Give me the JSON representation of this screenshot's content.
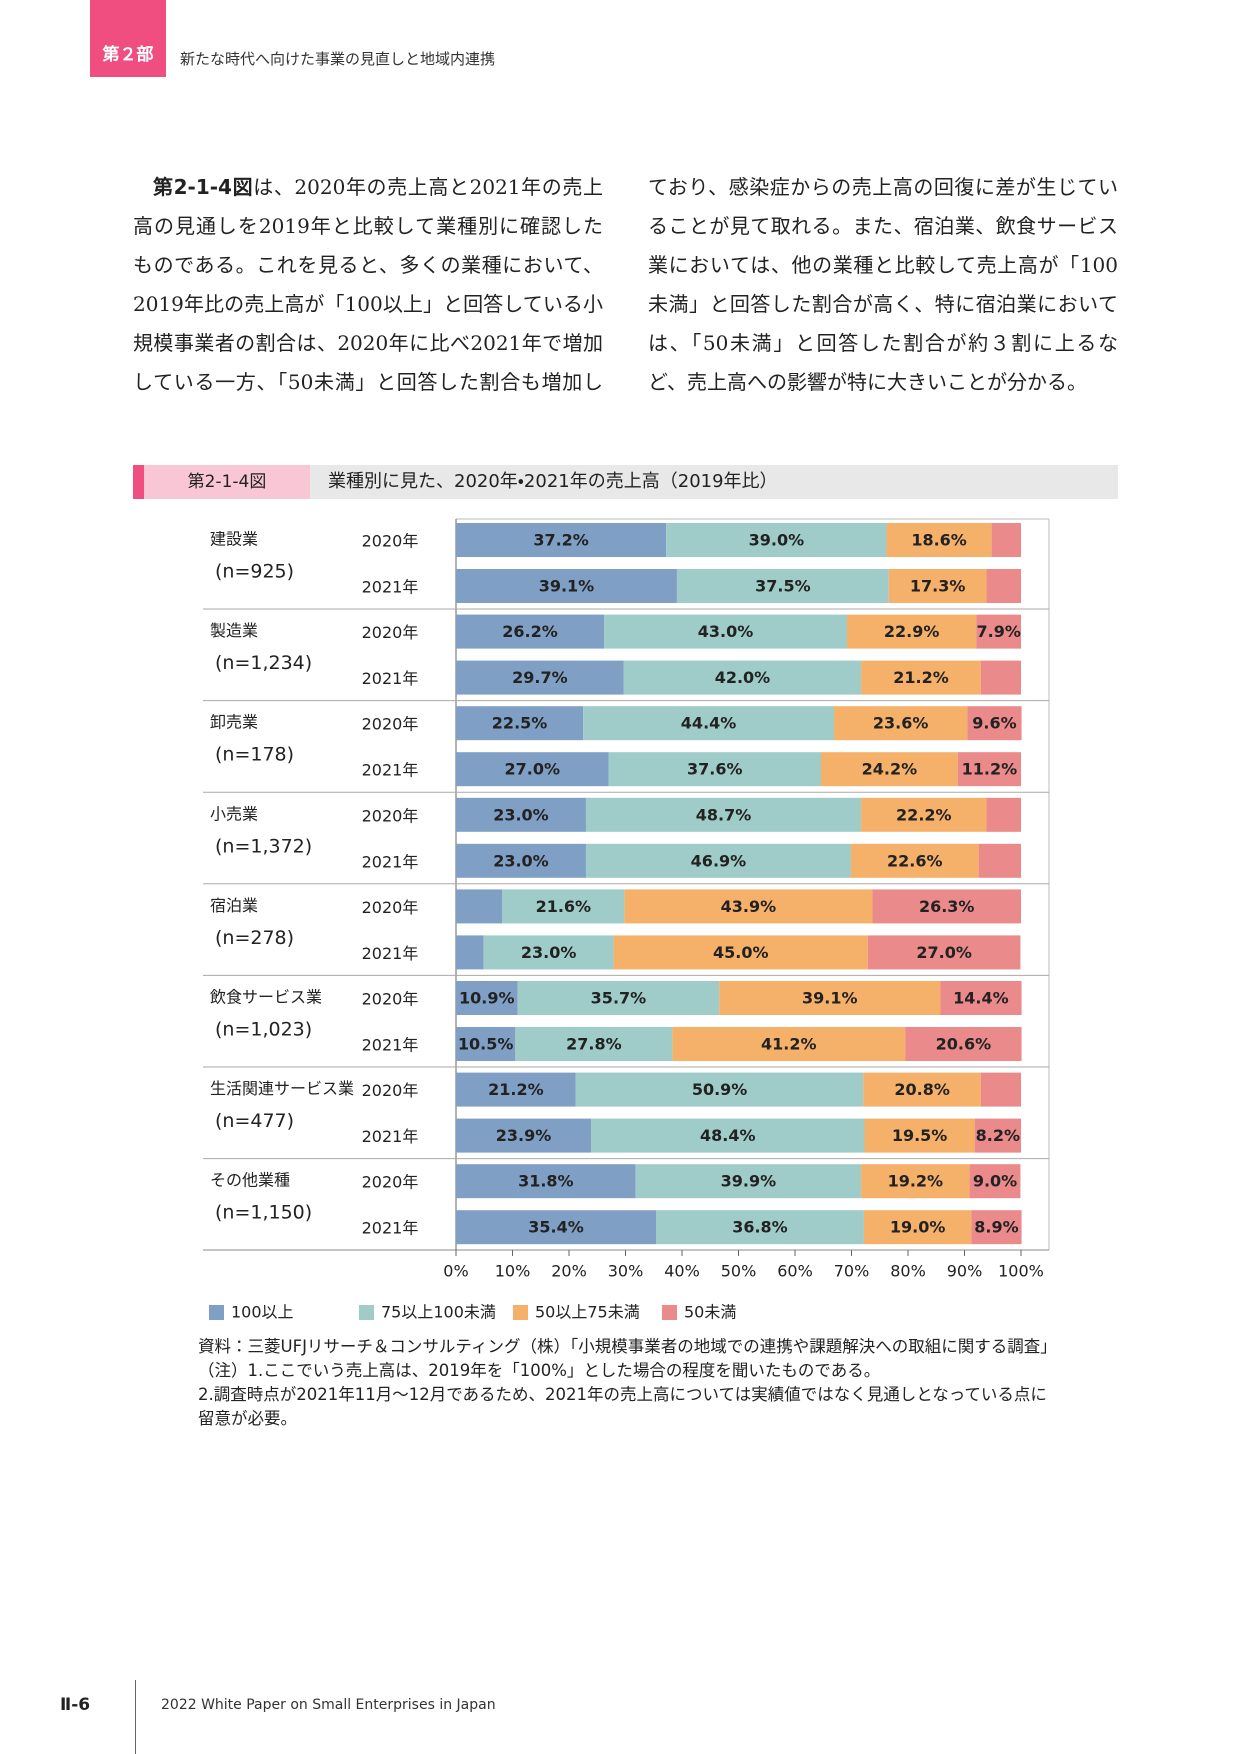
{
  "header": {
    "part": "第２部",
    "title": "新たな時代へ向けた事業の見直しと地域内連携"
  },
  "body": {
    "lead": "第2-1-4図",
    "text": "は、2020年の売上高と2021年の売上高の見通しを2019年と比較して業種別に確認したものである。これを見ると、多くの業種において、2019年比の売上高が「100以上」と回答している小規模事業者の割合は、2020年に比べ2021年で増加している一方、「50未満」と回答した割合も増加しており、感染症からの売上高の回復に差が生じていることが見て取れる。また、宿泊業、飲食サービス業においては、他の業種と比較して売上高が「100未満」と回答した割合が高く、特に宿泊業においては、「50未満」と回答した割合が約３割に上るなど、売上高への影響が特に大きいことが分かる。"
  },
  "figure": {
    "label": "第2-1-4図",
    "title": "業種別に見た、2020年・2021年の売上高（2019年比）"
  },
  "chart_data": {
    "type": "stacked-barh",
    "groups": [
      {
        "name": "建設業",
        "n": "(n=925)"
      },
      {
        "name": "製造業",
        "n": "(n=1,234)"
      },
      {
        "name": "卸売業",
        "n": "(n=178)"
      },
      {
        "name": "小売業",
        "n": "(n=1,372)"
      },
      {
        "name": "宿泊業",
        "n": "(n=278)"
      },
      {
        "name": "飲食サービス業",
        "n": "(n=1,023)"
      },
      {
        "name": "生活関連サービス業",
        "n": "(n=477)"
      },
      {
        "name": "その他業種",
        "n": "(n=1,150)"
      }
    ],
    "categories": [
      "2020年",
      "2021年",
      "2020年",
      "2021年",
      "2020年",
      "2021年",
      "2020年",
      "2021年",
      "2020年",
      "2021年",
      "2020年",
      "2021年",
      "2020年",
      "2021年",
      "2020年",
      "2021年"
    ],
    "series": [
      {
        "name": "100以上",
        "color": "#7f9fc4",
        "values": [
          37.2,
          39.1,
          26.2,
          29.7,
          22.5,
          27.0,
          23.0,
          23.0,
          8.2,
          4.9,
          10.9,
          10.5,
          21.2,
          23.9,
          31.8,
          35.4
        ],
        "value_labels": [
          "37.2%",
          "39.1%",
          "26.2%",
          "29.7%",
          "22.5%",
          "27.0%",
          "23.0%",
          "23.0%",
          null,
          null,
          "10.9%",
          "10.5%",
          "21.2%",
          "23.9%",
          "31.8%",
          "35.4%"
        ]
      },
      {
        "name": "75以上100未満",
        "color": "#9fccc8",
        "values": [
          39.0,
          37.5,
          43.0,
          42.0,
          44.4,
          37.6,
          48.7,
          46.9,
          21.6,
          23.0,
          35.7,
          27.8,
          50.9,
          48.4,
          39.9,
          36.8
        ],
        "value_labels": [
          "39.0%",
          "37.5%",
          "43.0%",
          "42.0%",
          "44.4%",
          "37.6%",
          "48.7%",
          "46.9%",
          "21.6%",
          "23.0%",
          "35.7%",
          "27.8%",
          "50.9%",
          "48.4%",
          "39.9%",
          "36.8%"
        ]
      },
      {
        "name": "50以上75未満",
        "color": "#f5b06a",
        "values": [
          18.6,
          17.3,
          22.9,
          21.2,
          23.6,
          24.2,
          22.2,
          22.6,
          43.9,
          45.0,
          39.1,
          41.2,
          20.8,
          19.5,
          19.2,
          19.0
        ],
        "value_labels": [
          "18.6%",
          "17.3%",
          "22.9%",
          "21.2%",
          "23.6%",
          "24.2%",
          "22.2%",
          "22.6%",
          "43.9%",
          "45.0%",
          "39.1%",
          "41.2%",
          "20.8%",
          "19.5%",
          "19.2%",
          "19.0%"
        ]
      },
      {
        "name": "50未満",
        "color": "#ea8a8a",
        "values": [
          5.2,
          6.1,
          7.9,
          7.1,
          9.6,
          11.2,
          6.1,
          7.5,
          26.3,
          27.0,
          14.4,
          20.6,
          7.1,
          8.2,
          9.0,
          8.9
        ],
        "value_labels": [
          null,
          null,
          "7.9%",
          null,
          "9.6%",
          "11.2%",
          null,
          null,
          "26.3%",
          "27.0%",
          "14.4%",
          "20.6%",
          null,
          "8.2%",
          "9.0%",
          "8.9%"
        ]
      }
    ],
    "xlim": [
      0,
      100
    ],
    "xticks": [
      {
        "value": 0,
        "label": "0%"
      },
      {
        "value": 10,
        "label": "10%"
      },
      {
        "value": 20,
        "label": "20%"
      },
      {
        "value": 30,
        "label": "30%"
      },
      {
        "value": 40,
        "label": "40%"
      },
      {
        "value": 50,
        "label": "50%"
      },
      {
        "value": 60,
        "label": "60%"
      },
      {
        "value": 70,
        "label": "70%"
      },
      {
        "value": 80,
        "label": "80%"
      },
      {
        "value": 90,
        "label": "90%"
      },
      {
        "value": 100,
        "label": "100%"
      }
    ]
  },
  "notes": [
    "資料：三菱UFJリサーチ＆コンサルティング（株）「小規模事業者の地域での連携や課題解決への取組に関する調査」",
    "（注）1.ここでいう売上高は、2019年を「100%」とした場合の程度を聞いたものである。",
    "2.調査時点が2021年11月～12月であるため、2021年の売上高については実績値ではなく見通しとなっている点に留意が必要。"
  ],
  "footer": {
    "page": "Ⅱ-6",
    "title": "2022 White Paper on Small Enterprises in Japan"
  }
}
